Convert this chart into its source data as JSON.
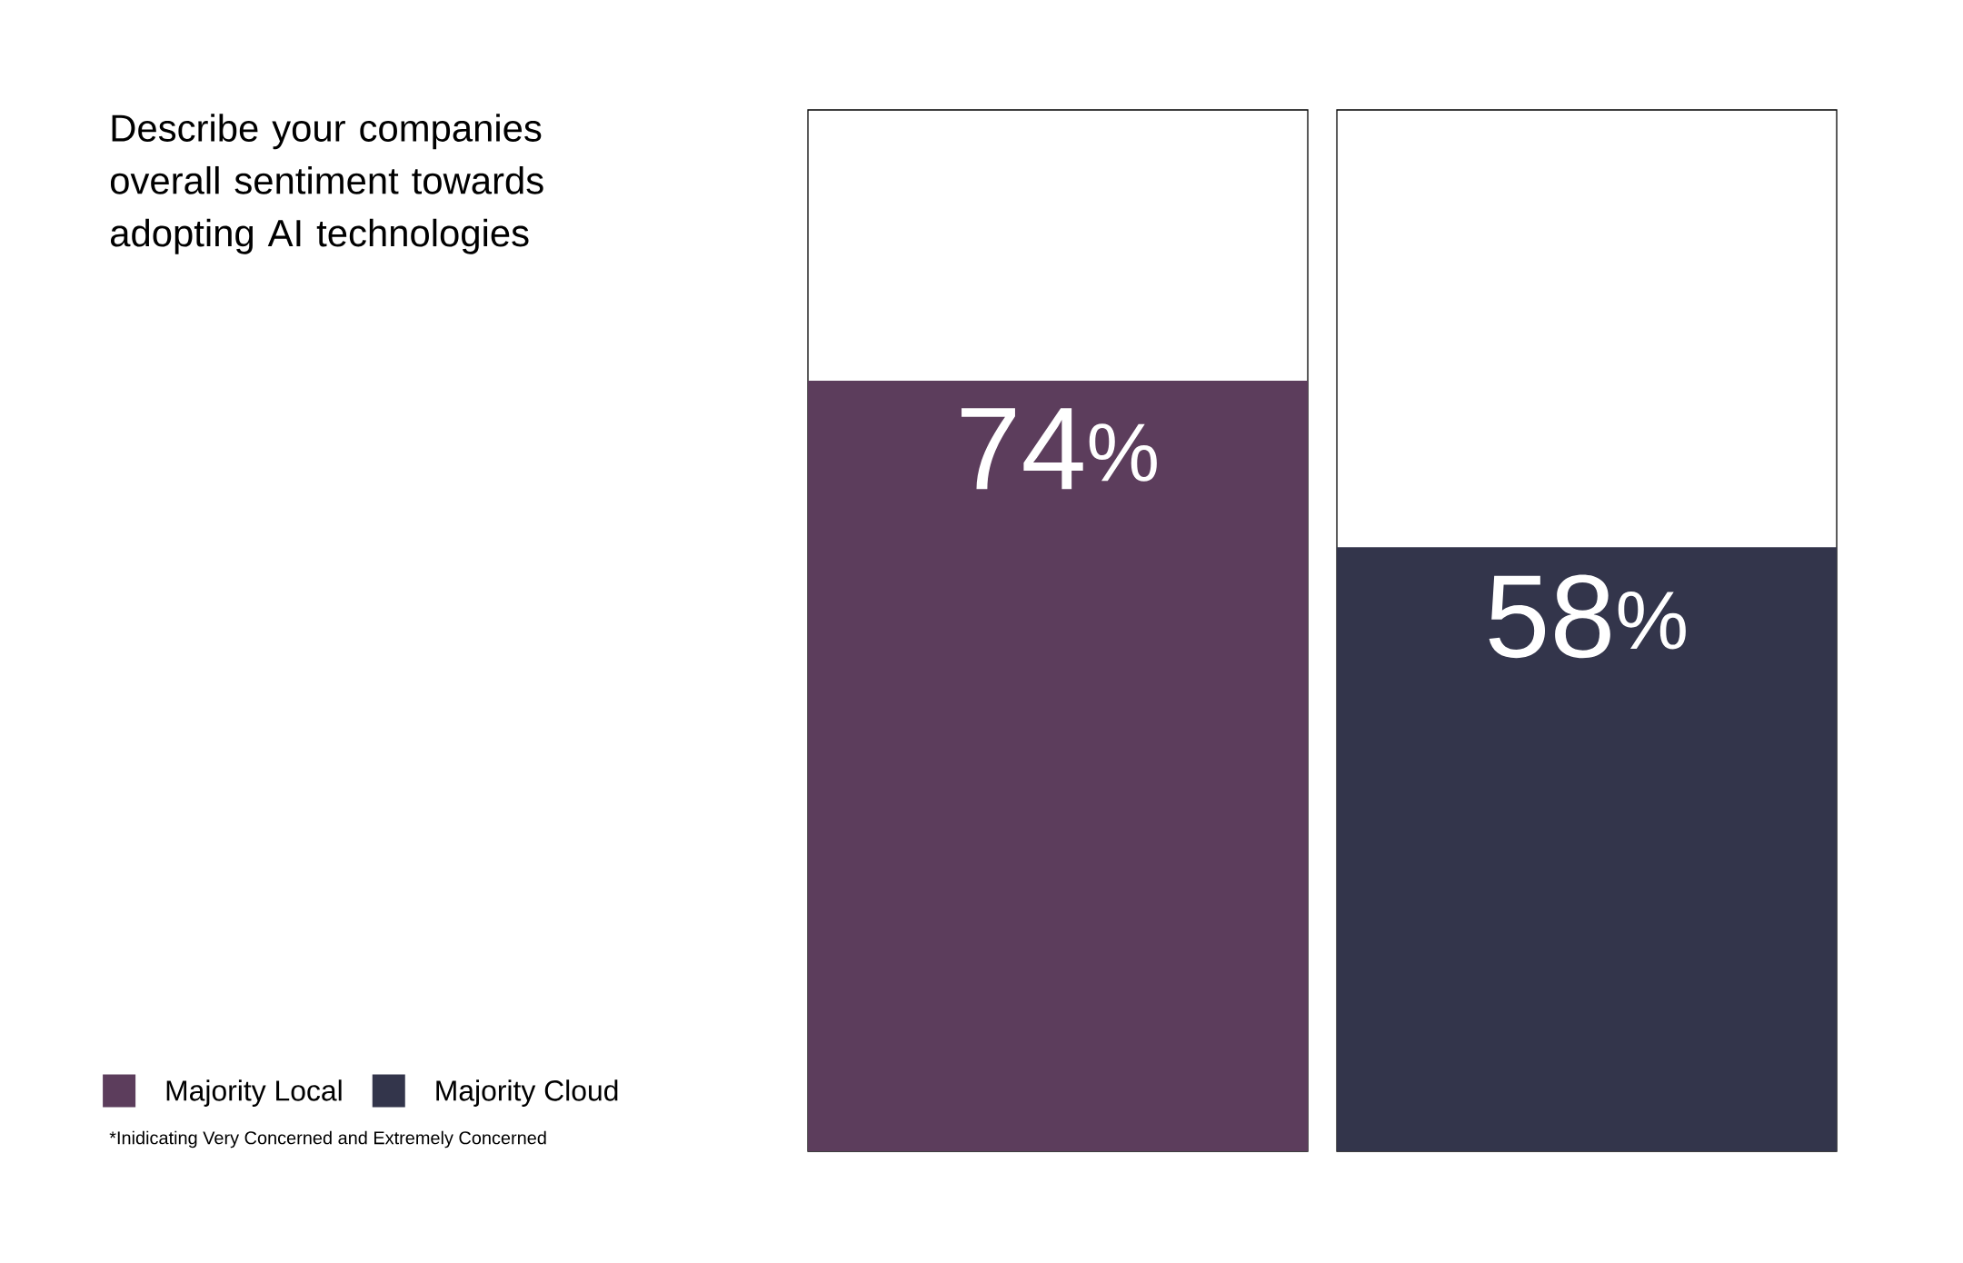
{
  "chart_data": {
    "type": "bar",
    "title": "Describe your companies overall sentiment towards adopting AI technologies",
    "categories": [
      null
    ],
    "ylim": [
      0,
      100
    ],
    "series": [
      {
        "name": "Majority Local",
        "color": "#5c3d5c",
        "values": [
          74
        ],
        "value_labels": [
          "74$^{%}$"
        ]
      },
      {
        "name": "Majority Cloud",
        "color": "#33354b",
        "values": [
          58
        ],
        "value_labels": [
          "58$^{%}$"
        ]
      }
    ],
    "legend": "bottom left",
    "annotations": [
      "*Inidicating Very Concerned and Extremely Concerned"
    ]
  }
}
